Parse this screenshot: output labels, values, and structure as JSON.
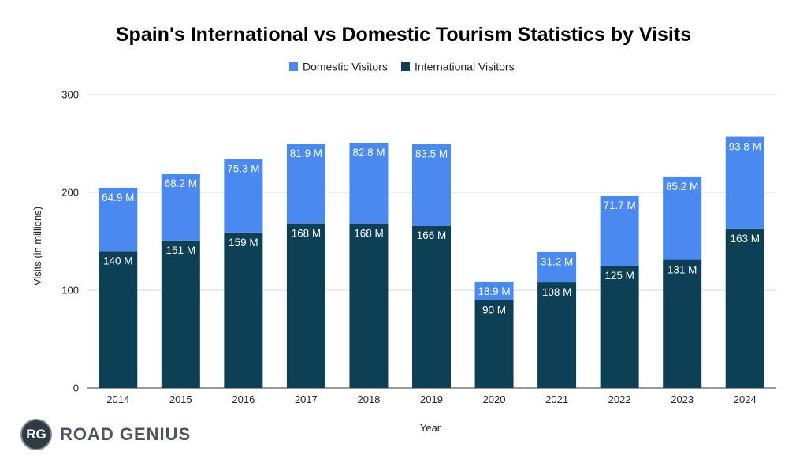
{
  "brand": {
    "mark": "RG",
    "name": "ROAD GENIUS"
  },
  "colors": {
    "domestic": "#4a8af0",
    "international": "#0d3f55",
    "grid": "#d9d9d9"
  },
  "chart_data": {
    "type": "bar",
    "stacked": true,
    "title": "Spain's International vs Domestic Tourism Statistics by Visits",
    "xlabel": "Year",
    "ylabel": "Visits (in millions)",
    "ylim": [
      0,
      300
    ],
    "yticks": [
      0,
      100,
      200,
      300
    ],
    "legend_position": "top",
    "categories": [
      "2014",
      "2015",
      "2016",
      "2017",
      "2018",
      "2019",
      "2020",
      "2021",
      "2022",
      "2023",
      "2024"
    ],
    "series": [
      {
        "name": "International Visitors",
        "values": [
          140,
          151,
          159,
          168,
          168,
          166,
          90,
          108,
          125,
          131,
          163
        ],
        "labels": [
          "140 M",
          "151 M",
          "159 M",
          "168 M",
          "168 M",
          "166 M",
          "90 M",
          "108 M",
          "125 M",
          "131 M",
          "163 M"
        ]
      },
      {
        "name": "Domestic Visitors",
        "values": [
          64.9,
          68.2,
          75.3,
          81.9,
          82.8,
          83.5,
          18.9,
          31.2,
          71.7,
          85.2,
          93.8
        ],
        "labels": [
          "64.9 M",
          "68.2 M",
          "75.3 M",
          "81.9 M",
          "82.8 M",
          "83.5 M",
          "18.9 M",
          "31.2 M",
          "71.7 M",
          "85.2 M",
          "93.8 M"
        ]
      }
    ],
    "legend": [
      "Domestic Visitors",
      "International Visitors"
    ]
  }
}
